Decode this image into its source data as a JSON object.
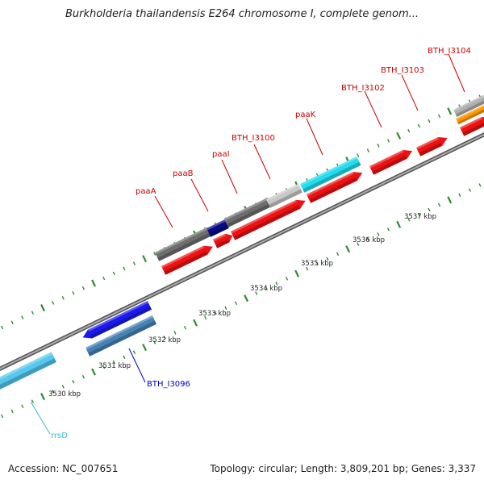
{
  "title": "Burkholderia thailandensis E264 chromosome I, complete genom...",
  "accession": "Accession: NC_007651",
  "topology": "Topology: circular; Length: 3,809,201 bp; Genes: 3,337",
  "kbp_labels": [
    "3530 kbp",
    "3531 kbp",
    "3532 kbp",
    "3533 kbp",
    "3534 kbp",
    "3535 kbp",
    "3536 kbp",
    "3537 kbp"
  ],
  "gene_labels": {
    "paaA": "paaA",
    "paaB": "paaB",
    "paaI": "paaI",
    "BTH_I3100": "BTH_I3100",
    "paaK": "paaK",
    "BTH_I3102": "BTH_I3102",
    "BTH_I3103": "BTH_I3103",
    "BTH_I3104": "BTH_I3104",
    "BTH_I3096": "BTH_I3096",
    "rrsD": "rrsD"
  },
  "colors": {
    "cds": "#ee1111",
    "cds_dark": "#990000",
    "blue": "#1a1aee",
    "steelblue": "#4682b4",
    "cyan": "#22ddee",
    "lightblue": "#55c8ee",
    "navy": "#0a0a88",
    "darkgray": "#6e6e6e",
    "lightgray": "#c8c8c8",
    "orange": "#ff9900",
    "tick": "#2e8b2e",
    "label_red": "#cc0000",
    "label_blue": "#0000cc",
    "label_cyan": "#33bbdd"
  }
}
